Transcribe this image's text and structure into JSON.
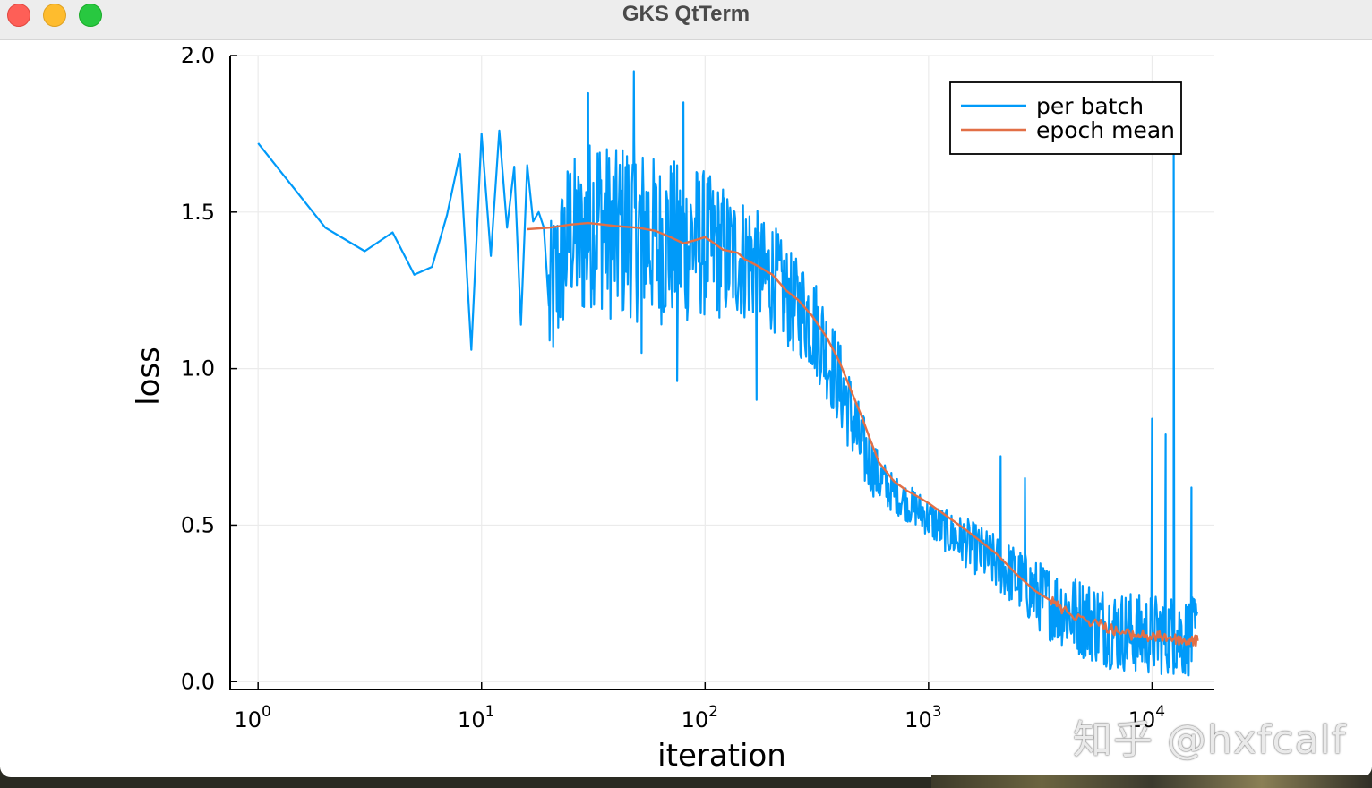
{
  "window": {
    "title": "GKS QtTerm"
  },
  "watermark": {
    "text": "知乎 @hxfcalf"
  },
  "colors": {
    "per_batch": "#009af9",
    "epoch_mean": "#e26f46",
    "grid": "#ebebeb"
  },
  "chart_data": {
    "type": "line",
    "xlabel": "iteration",
    "ylabel": "loss",
    "xscale": "log10",
    "xlim": [
      0.75,
      19000
    ],
    "ylim": [
      -0.025,
      2.0
    ],
    "xticks": [
      {
        "value": 1,
        "base": "10",
        "exp": "0"
      },
      {
        "value": 10,
        "base": "10",
        "exp": "1"
      },
      {
        "value": 100,
        "base": "10",
        "exp": "2"
      },
      {
        "value": 1000,
        "base": "10",
        "exp": "3"
      },
      {
        "value": 10000,
        "base": "10",
        "exp": "4"
      }
    ],
    "yticks": [
      {
        "value": 0.0,
        "label": "0.0"
      },
      {
        "value": 0.5,
        "label": "0.5"
      },
      {
        "value": 1.0,
        "label": "1.0"
      },
      {
        "value": 1.5,
        "label": "1.5"
      },
      {
        "value": 2.0,
        "label": "2.0"
      }
    ],
    "grid": true,
    "legend_position": "top-right",
    "series": [
      {
        "name": "per batch",
        "color": "#009af9",
        "x": [
          1,
          2,
          3,
          4,
          5,
          6,
          7,
          8,
          9,
          10,
          11,
          12,
          13,
          14,
          15,
          16,
          17,
          18,
          19,
          20,
          22,
          25,
          28,
          30,
          33,
          35,
          40,
          45,
          48,
          50,
          55,
          60,
          65,
          70,
          75,
          80,
          85,
          90,
          95,
          100,
          110,
          120,
          130,
          140,
          150,
          160,
          170,
          180,
          190,
          200,
          220,
          250,
          280,
          300,
          330,
          350,
          400,
          450,
          500,
          550,
          600,
          650,
          700,
          800,
          900,
          1000,
          1200,
          1500,
          2000,
          2500,
          3000,
          3500,
          4000,
          5000,
          6000,
          7000,
          8000,
          9000,
          10000,
          11000,
          12000,
          12500,
          13000,
          14000,
          15000,
          16000
        ],
        "center": [
          1.72,
          1.45,
          1.375,
          1.435,
          1.3,
          1.325,
          1.49,
          1.685,
          1.06,
          1.75,
          1.36,
          1.76,
          1.45,
          1.645,
          1.14,
          1.65,
          1.47,
          1.5,
          1.45,
          1.2,
          1.3,
          1.45,
          1.4,
          1.45,
          1.5,
          1.45,
          1.42,
          1.45,
          1.45,
          1.42,
          1.45,
          1.4,
          1.4,
          1.42,
          1.4,
          1.38,
          1.4,
          1.42,
          1.4,
          1.4,
          1.38,
          1.37,
          1.36,
          1.36,
          1.35,
          1.35,
          1.32,
          1.3,
          1.28,
          1.3,
          1.25,
          1.2,
          1.18,
          1.15,
          1.1,
          1.05,
          0.95,
          0.85,
          0.75,
          0.7,
          0.65,
          0.62,
          0.6,
          0.57,
          0.55,
          0.52,
          0.48,
          0.44,
          0.38,
          0.33,
          0.28,
          0.25,
          0.23,
          0.2,
          0.18,
          0.16,
          0.16,
          0.15,
          0.15,
          0.15,
          0.15,
          0.15,
          0.15,
          0.14,
          0.14,
          0.14
        ],
        "spread": [
          0,
          0,
          0,
          0,
          0,
          0,
          0,
          0,
          0,
          0,
          0,
          0,
          0,
          0,
          0,
          0,
          0,
          0,
          0,
          0.25,
          0.25,
          0.25,
          0.25,
          0.28,
          0.28,
          0.28,
          0.28,
          0.3,
          0.28,
          0.28,
          0.27,
          0.27,
          0.26,
          0.26,
          0.26,
          0.25,
          0.25,
          0.24,
          0.24,
          0.24,
          0.22,
          0.22,
          0.2,
          0.2,
          0.2,
          0.2,
          0.19,
          0.18,
          0.18,
          0.18,
          0.16,
          0.16,
          0.16,
          0.16,
          0.16,
          0.15,
          0.14,
          0.13,
          0.12,
          0.1,
          0.08,
          0.07,
          0.06,
          0.06,
          0.06,
          0.06,
          0.07,
          0.08,
          0.09,
          0.1,
          0.11,
          0.12,
          0.12,
          0.13,
          0.13,
          0.13,
          0.13,
          0.13,
          0.13,
          0.13,
          0.13,
          0.13,
          0.13,
          0.13,
          0.13,
          0.13
        ],
        "spikes": [
          {
            "x": 30,
            "y": 1.88
          },
          {
            "x": 48,
            "y": 1.95
          },
          {
            "x": 80,
            "y": 1.85
          },
          {
            "x": 52,
            "y": 1.05
          },
          {
            "x": 75,
            "y": 0.96
          },
          {
            "x": 170,
            "y": 0.9
          },
          {
            "x": 2100,
            "y": 0.72
          },
          {
            "x": 2700,
            "y": 0.65
          },
          {
            "x": 10000,
            "y": 0.84
          },
          {
            "x": 11500,
            "y": 0.79
          },
          {
            "x": 12500,
            "y": 1.7
          },
          {
            "x": 15000,
            "y": 0.62
          }
        ]
      },
      {
        "name": "epoch mean",
        "color": "#e26f46",
        "x": [
          16,
          20,
          25,
          30,
          35,
          40,
          50,
          60,
          70,
          80,
          90,
          100,
          110,
          120,
          140,
          150,
          170,
          200,
          230,
          260,
          300,
          350,
          400,
          450,
          500,
          550,
          600,
          700,
          800,
          900,
          1000,
          1200,
          1500,
          2000,
          2500,
          3000,
          3500,
          4000,
          5000,
          6000,
          7000,
          8000,
          9000,
          10000,
          11000,
          12000,
          13000,
          14000,
          15000,
          16000
        ],
        "y": [
          1.445,
          1.45,
          1.46,
          1.465,
          1.46,
          1.455,
          1.45,
          1.44,
          1.42,
          1.4,
          1.41,
          1.42,
          1.4,
          1.38,
          1.37,
          1.35,
          1.33,
          1.3,
          1.25,
          1.22,
          1.17,
          1.1,
          1.02,
          0.93,
          0.85,
          0.77,
          0.7,
          0.64,
          0.61,
          0.59,
          0.57,
          0.53,
          0.48,
          0.41,
          0.34,
          0.29,
          0.26,
          0.23,
          0.2,
          0.18,
          0.16,
          0.15,
          0.15,
          0.14,
          0.145,
          0.14,
          0.135,
          0.13,
          0.13,
          0.13
        ]
      }
    ]
  }
}
